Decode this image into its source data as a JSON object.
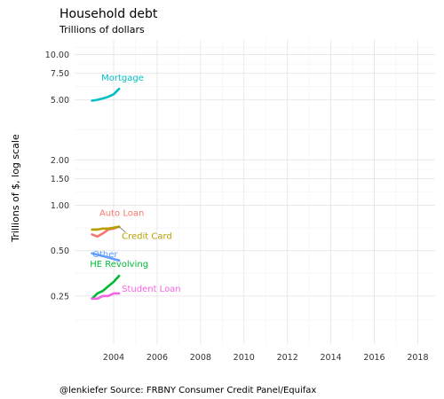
{
  "chart_data": {
    "type": "line",
    "title": "Household debt",
    "subtitle": "Trillions of dollars",
    "ylabel": "Trillions of $, log scale",
    "xlabel": "",
    "caption": "@lenkiefer Source: FRBNY Consumer Credit Panel/Equifax",
    "y_scale": "log",
    "xlim": [
      2002.2,
      2018.8
    ],
    "ylim": [
      0.12,
      12.5
    ],
    "x_ticks": [
      2004,
      2006,
      2008,
      2010,
      2012,
      2014,
      2016,
      2018
    ],
    "x_tick_labels": [
      "2004",
      "2006",
      "2008",
      "2010",
      "2012",
      "2014",
      "2016",
      "2018"
    ],
    "y_ticks": [
      0.25,
      0.5,
      1.0,
      1.5,
      2.0,
      5.0,
      7.5,
      10.0
    ],
    "y_tick_labels": [
      "0.25",
      "0.50",
      "1.00",
      "1.50",
      "2.00",
      "5.00",
      "7.50",
      "10.00"
    ],
    "grid": true,
    "legend": "none",
    "series": [
      {
        "name": "Mortgage",
        "color": "#00BFC4",
        "x": [
          2003.0,
          2003.25,
          2003.5,
          2003.75,
          2004.0,
          2004.25
        ],
        "y": [
          4.94,
          5.0,
          5.11,
          5.24,
          5.45,
          5.92
        ]
      },
      {
        "name": "Auto Loan",
        "color": "#F8766D",
        "x": [
          2003.0,
          2003.25,
          2003.5,
          2003.75,
          2004.0,
          2004.25
        ],
        "y": [
          0.64,
          0.62,
          0.65,
          0.69,
          0.7,
          0.72
        ]
      },
      {
        "name": "Credit Card",
        "color": "#B79F00",
        "x": [
          2003.0,
          2003.25,
          2003.5,
          2003.75,
          2004.0,
          2004.25
        ],
        "y": [
          0.69,
          0.69,
          0.7,
          0.7,
          0.71,
          0.72
        ]
      },
      {
        "name": "Other",
        "color": "#619CFF",
        "x": [
          2003.0,
          2003.25,
          2003.5,
          2003.75,
          2004.0,
          2004.25
        ],
        "y": [
          0.48,
          0.47,
          0.46,
          0.45,
          0.44,
          0.43
        ]
      },
      {
        "name": "HE Revolving",
        "color": "#00BA38",
        "x": [
          2003.0,
          2003.25,
          2003.5,
          2003.75,
          2004.0,
          2004.25
        ],
        "y": [
          0.24,
          0.26,
          0.27,
          0.29,
          0.31,
          0.34
        ]
      },
      {
        "name": "Student Loan",
        "color": "#F564E3",
        "x": [
          2003.0,
          2003.25,
          2003.5,
          2003.75,
          2004.0,
          2004.25
        ],
        "y": [
          0.24,
          0.24,
          0.25,
          0.25,
          0.26,
          0.26
        ]
      }
    ]
  }
}
